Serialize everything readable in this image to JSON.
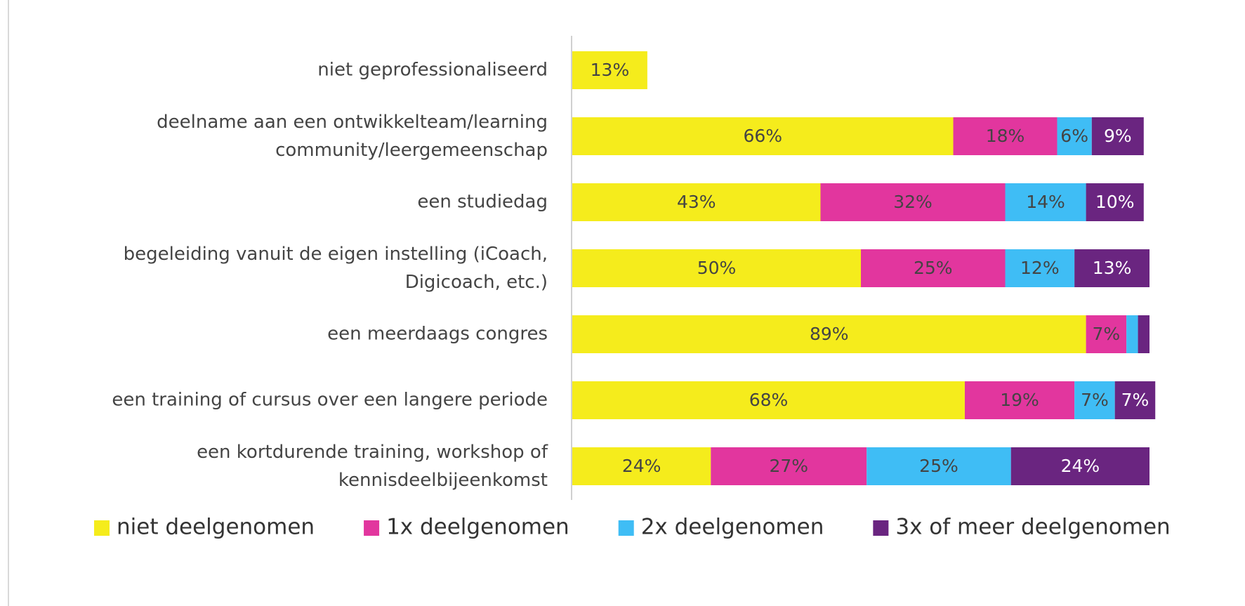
{
  "chart_data": {
    "type": "stacked_bar_horizontal",
    "categories": [
      "niet geprofessionaliseerd",
      "deelname aan een ontwikkelteam/learning\ncommunity/leergemeenschap",
      "een studiedag",
      "begeleiding vanuit de eigen instelling (iCoach,\nDigicoach, etc.)",
      "een meerdaags congres",
      "een training of cursus over een langere periode",
      "een kortdurende training, workshop of\nkennisdeelbijeenkomst"
    ],
    "series": [
      {
        "name": "niet deelgenomen",
        "color": "#f5ec1c",
        "label_color": "#444444",
        "values": [
          13,
          66,
          43,
          50,
          89,
          68,
          24
        ]
      },
      {
        "name": "1x deelgenomen",
        "color": "#e2369e",
        "label_color": "#444444",
        "values": [
          null,
          18,
          32,
          25,
          7,
          19,
          27
        ]
      },
      {
        "name": "2x deelgenomen",
        "color": "#3fbdf5",
        "label_color": "#444444",
        "values": [
          null,
          6,
          14,
          12,
          2,
          7,
          25
        ]
      },
      {
        "name": "3x of meer deelgenomen",
        "color": "#6a2580",
        "label_color": "#ffffff",
        "values": [
          null,
          9,
          10,
          13,
          2,
          7,
          24
        ]
      }
    ],
    "value_labels": [
      [
        "13%",
        "66%",
        "43%",
        "50%",
        "89%",
        "68%",
        "24%"
      ],
      [
        null,
        "18%",
        "32%",
        "25%",
        "7%",
        "19%",
        "27%"
      ],
      [
        null,
        "6%",
        "14%",
        "12%",
        null,
        "7%",
        "25%"
      ],
      [
        null,
        "9%",
        "10%",
        "13%",
        null,
        "7%",
        "24%"
      ]
    ],
    "xlim": [
      0,
      100
    ],
    "legend": "bottom"
  }
}
